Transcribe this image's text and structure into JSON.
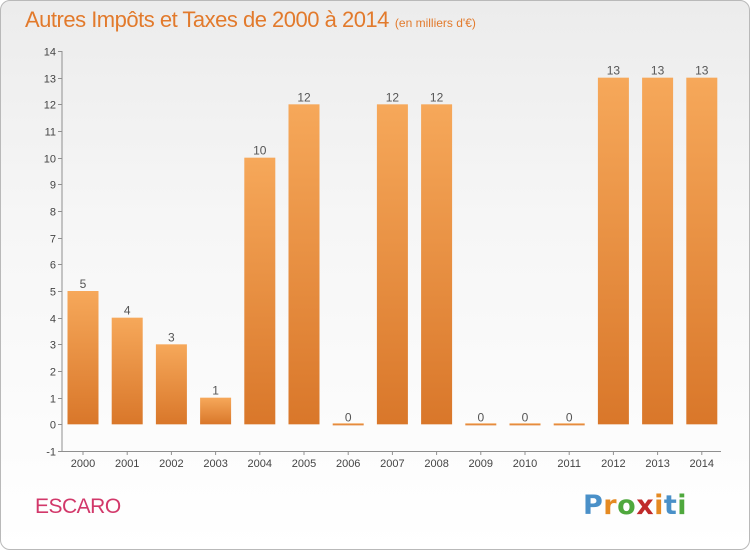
{
  "title": "Autres Impôts et Taxes de 2000 à 2014",
  "subtitle": "(en milliers d'€)",
  "place": "ESCARO",
  "logo": [
    "P",
    "r",
    "o",
    "x",
    "i",
    "t",
    "i"
  ],
  "colors": {
    "title": "#e27a2c",
    "place": "#d2386a",
    "bar_light": "#f6a85a",
    "bar_dark": "#d9772a",
    "logo": [
      "#4a90c8",
      "#e58a22",
      "#4fa83d",
      "#c02a2a",
      "#e58a22",
      "#4a90c8",
      "#4fa83d"
    ]
  },
  "chart_data": {
    "type": "bar",
    "categories": [
      "2000",
      "2001",
      "2002",
      "2003",
      "2004",
      "2005",
      "2006",
      "2007",
      "2008",
      "2009",
      "2010",
      "2011",
      "2012",
      "2013",
      "2014"
    ],
    "values": [
      5,
      4,
      3,
      1,
      10,
      12,
      0,
      12,
      12,
      0,
      0,
      0,
      13,
      13,
      13
    ],
    "data_labels": [
      "5",
      "4",
      "3",
      "1",
      "10",
      "12",
      "0",
      "12",
      "12",
      "0",
      "0",
      "0",
      "13",
      "13",
      "13"
    ],
    "ylim": [
      -1,
      14
    ],
    "yticks": [
      "-1",
      "0",
      "1",
      "2",
      "3",
      "4",
      "5",
      "6",
      "7",
      "8",
      "9",
      "10",
      "11",
      "12",
      "13",
      "14"
    ],
    "grid": false
  }
}
